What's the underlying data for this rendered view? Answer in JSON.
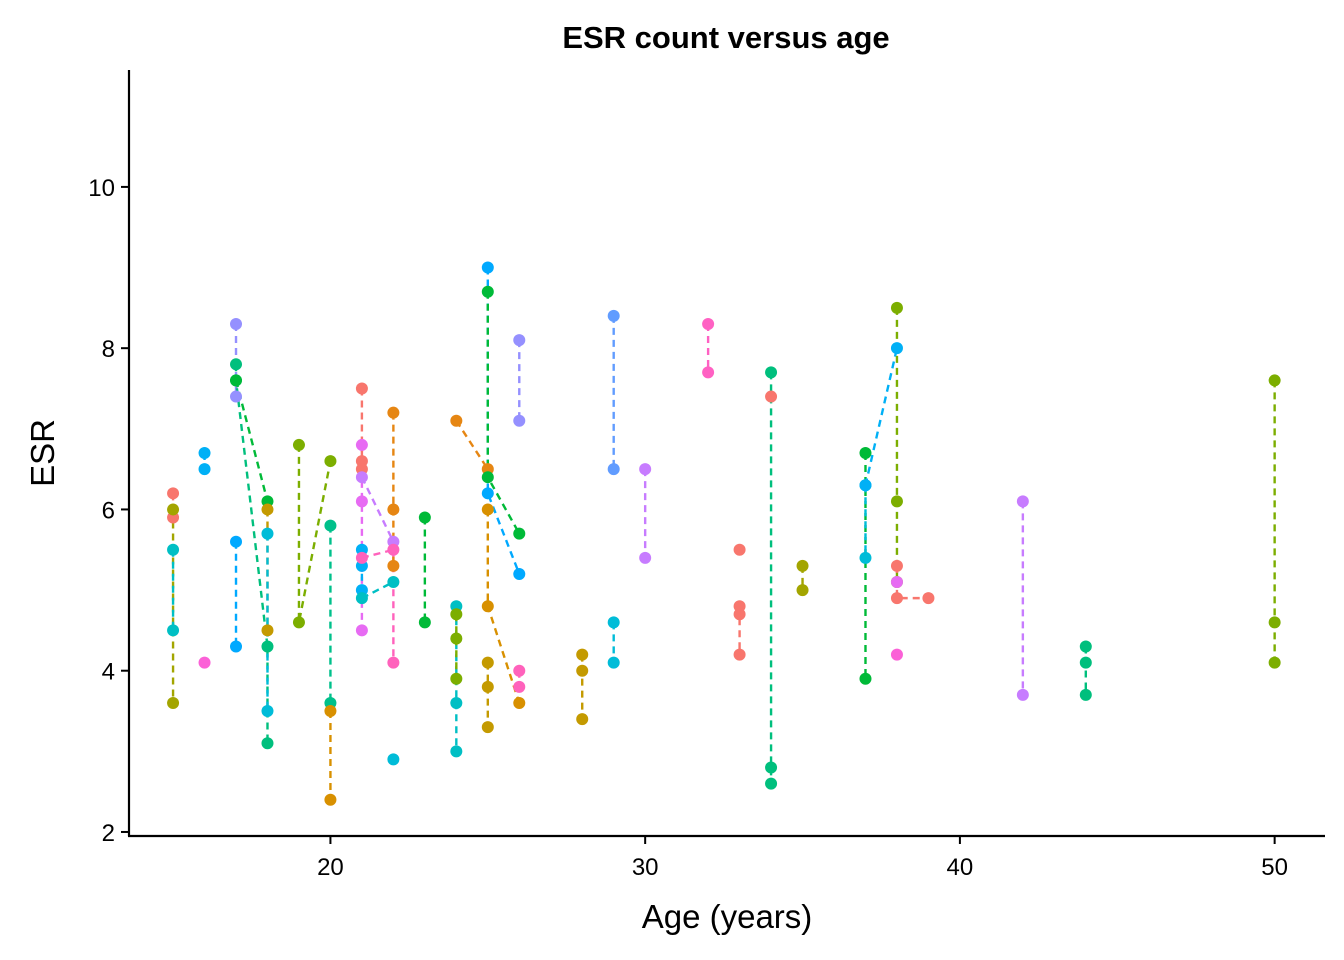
{
  "chart_data": {
    "type": "scatter",
    "title": "ESR count versus age",
    "xlabel": "Age (years)",
    "ylabel": "ESR",
    "xlim": [
      13.6,
      51.6
    ],
    "ylim": [
      1.95,
      11.45
    ],
    "xticks": [
      20,
      30,
      40,
      50
    ],
    "yticks": [
      2,
      4,
      6,
      8,
      10
    ],
    "grid": false,
    "legend": "none",
    "line_style": "dashed",
    "series": [
      {
        "color": "#F8766D",
        "points": [
          [
            15,
            6.2
          ],
          [
            15,
            5.9
          ]
        ]
      },
      {
        "color": "#A3A500",
        "points": [
          [
            15,
            6.0
          ],
          [
            15,
            3.6
          ]
        ]
      },
      {
        "color": "#00BFC4",
        "points": [
          [
            15,
            5.5
          ],
          [
            15,
            4.5
          ]
        ]
      },
      {
        "color": "#00B0F6",
        "points": [
          [
            16,
            6.7
          ],
          [
            16,
            6.5
          ]
        ]
      },
      {
        "color": "#FB61D7",
        "points": [
          [
            16,
            4.1
          ]
        ]
      },
      {
        "color": "#9590FF",
        "points": [
          [
            17,
            8.3
          ],
          [
            17,
            7.4
          ]
        ]
      },
      {
        "color": "#00BF7D",
        "points": [
          [
            17,
            7.8
          ],
          [
            17,
            7.6
          ],
          [
            18,
            4.3
          ],
          [
            18,
            3.1
          ]
        ]
      },
      {
        "color": "#00BA38",
        "points": [
          [
            17,
            7.6
          ],
          [
            18,
            6.1
          ]
        ]
      },
      {
        "color": "#00A9FF",
        "points": [
          [
            17,
            5.6
          ],
          [
            17,
            4.3
          ]
        ]
      },
      {
        "color": "#C49A00",
        "points": [
          [
            18,
            6.0
          ],
          [
            18,
            4.5
          ]
        ]
      },
      {
        "color": "#00BCD8",
        "points": [
          [
            18,
            5.7
          ],
          [
            18,
            3.5
          ]
        ]
      },
      {
        "color": "#7CAE00",
        "points": [
          [
            19,
            6.8
          ],
          [
            19,
            4.6
          ],
          [
            20,
            6.6
          ]
        ]
      },
      {
        "color": "#00C08B",
        "points": [
          [
            20,
            5.8
          ],
          [
            20,
            3.6
          ]
        ]
      },
      {
        "color": "#E76BF3",
        "points": [
          [
            21,
            6.8
          ],
          [
            21,
            6.1
          ],
          [
            21,
            4.5
          ]
        ]
      },
      {
        "color": "#F8766D",
        "points": [
          [
            21,
            7.5
          ],
          [
            21,
            6.6
          ],
          [
            21,
            6.5
          ]
        ]
      },
      {
        "color": "#D89000",
        "points": [
          [
            20,
            3.5
          ],
          [
            20,
            2.4
          ]
        ]
      },
      {
        "color": "#00B0F6",
        "points": [
          [
            21,
            5.5
          ],
          [
            21,
            5.3
          ],
          [
            21,
            5.0
          ]
        ]
      },
      {
        "color": "#C77CFF",
        "points": [
          [
            21,
            6.4
          ],
          [
            22,
            5.6
          ]
        ]
      },
      {
        "color": "#00BFC4",
        "points": [
          [
            21,
            4.9
          ],
          [
            22,
            5.1
          ]
        ]
      },
      {
        "color": "#FF62BC",
        "points": [
          [
            21,
            5.4
          ],
          [
            22,
            5.5
          ],
          [
            22,
            4.1
          ]
        ]
      },
      {
        "color": "#E68613",
        "points": [
          [
            22,
            7.2
          ],
          [
            22,
            6.0
          ],
          [
            22,
            5.3
          ]
        ]
      },
      {
        "color": "#00BCD8",
        "points": [
          [
            22,
            2.9
          ]
        ]
      },
      {
        "color": "#00BA38",
        "points": [
          [
            23,
            5.9
          ],
          [
            23,
            4.6
          ]
        ]
      },
      {
        "color": "#00BFC4",
        "points": [
          [
            24,
            4.8
          ],
          [
            24,
            3.6
          ],
          [
            24,
            3.0
          ]
        ]
      },
      {
        "color": "#7CAE00",
        "points": [
          [
            24,
            4.7
          ],
          [
            24,
            4.4
          ],
          [
            24,
            3.9
          ]
        ]
      },
      {
        "color": "#E68613",
        "points": [
          [
            24,
            7.1
          ],
          [
            25,
            6.5
          ]
        ]
      },
      {
        "color": "#00A9FF",
        "points": [
          [
            25,
            9.0
          ],
          [
            25,
            6.2
          ],
          [
            26,
            5.2
          ]
        ]
      },
      {
        "color": "#00BA38",
        "points": [
          [
            25,
            8.7
          ],
          [
            25,
            6.4
          ],
          [
            26,
            5.7
          ]
        ]
      },
      {
        "color": "#D89000",
        "points": [
          [
            25,
            6.0
          ],
          [
            25,
            4.8
          ],
          [
            26,
            3.6
          ]
        ]
      },
      {
        "color": "#C49A00",
        "points": [
          [
            25,
            4.1
          ],
          [
            25,
            3.8
          ],
          [
            25,
            3.3
          ]
        ]
      },
      {
        "color": "#9590FF",
        "points": [
          [
            26,
            8.1
          ],
          [
            26,
            7.1
          ]
        ]
      },
      {
        "color": "#FF62BC",
        "points": [
          [
            26,
            4.0
          ],
          [
            26,
            3.8
          ]
        ]
      },
      {
        "color": "#C49A00",
        "points": [
          [
            28,
            4.2
          ],
          [
            28,
            4.0
          ],
          [
            28,
            3.4
          ]
        ]
      },
      {
        "color": "#619CFF",
        "points": [
          [
            29,
            8.4
          ],
          [
            29,
            6.5
          ]
        ]
      },
      {
        "color": "#00BCD8",
        "points": [
          [
            29,
            4.6
          ],
          [
            29,
            4.1
          ]
        ]
      },
      {
        "color": "#C77CFF",
        "points": [
          [
            30,
            6.5
          ],
          [
            30,
            5.4
          ]
        ]
      },
      {
        "color": "#FF61C3",
        "points": [
          [
            32,
            8.3
          ],
          [
            32,
            7.7
          ]
        ]
      },
      {
        "color": "#F8766D",
        "points": [
          [
            33,
            5.5
          ]
        ]
      },
      {
        "color": "#F8766D",
        "points": [
          [
            33,
            4.8
          ],
          [
            33,
            4.7
          ],
          [
            33,
            4.2
          ]
        ]
      },
      {
        "color": "#00BF7D",
        "points": [
          [
            34,
            7.7
          ],
          [
            34,
            2.8
          ],
          [
            34,
            2.6
          ]
        ]
      },
      {
        "color": "#F8766D",
        "points": [
          [
            34,
            7.4
          ]
        ]
      },
      {
        "color": "#A3A500",
        "points": [
          [
            35,
            5.3
          ],
          [
            35,
            5.0
          ]
        ]
      },
      {
        "color": "#00BA38",
        "points": [
          [
            37,
            6.7
          ],
          [
            37,
            3.9
          ]
        ]
      },
      {
        "color": "#00BCD8",
        "points": [
          [
            37,
            6.3
          ],
          [
            37,
            5.4
          ]
        ]
      },
      {
        "color": "#00B0F6",
        "points": [
          [
            37,
            6.3
          ],
          [
            38,
            8.0
          ]
        ]
      },
      {
        "color": "#7CAE00",
        "points": [
          [
            38,
            8.5
          ],
          [
            38,
            6.1
          ],
          [
            38,
            5.1
          ]
        ]
      },
      {
        "color": "#F8766D",
        "points": [
          [
            38,
            5.3
          ],
          [
            38,
            4.9
          ],
          [
            39,
            4.9
          ]
        ]
      },
      {
        "color": "#E76BF3",
        "points": [
          [
            38,
            5.1
          ]
        ]
      },
      {
        "color": "#FB61D7",
        "points": [
          [
            38,
            4.2
          ]
        ]
      },
      {
        "color": "#C77CFF",
        "points": [
          [
            42,
            6.1
          ],
          [
            42,
            3.7
          ]
        ]
      },
      {
        "color": "#00BF7D",
        "points": [
          [
            44,
            4.3
          ],
          [
            44,
            4.1
          ],
          [
            44,
            3.7
          ]
        ]
      },
      {
        "color": "#7CAE00",
        "points": [
          [
            50,
            7.6
          ],
          [
            50,
            4.6
          ],
          [
            50,
            4.1
          ]
        ]
      }
    ]
  }
}
